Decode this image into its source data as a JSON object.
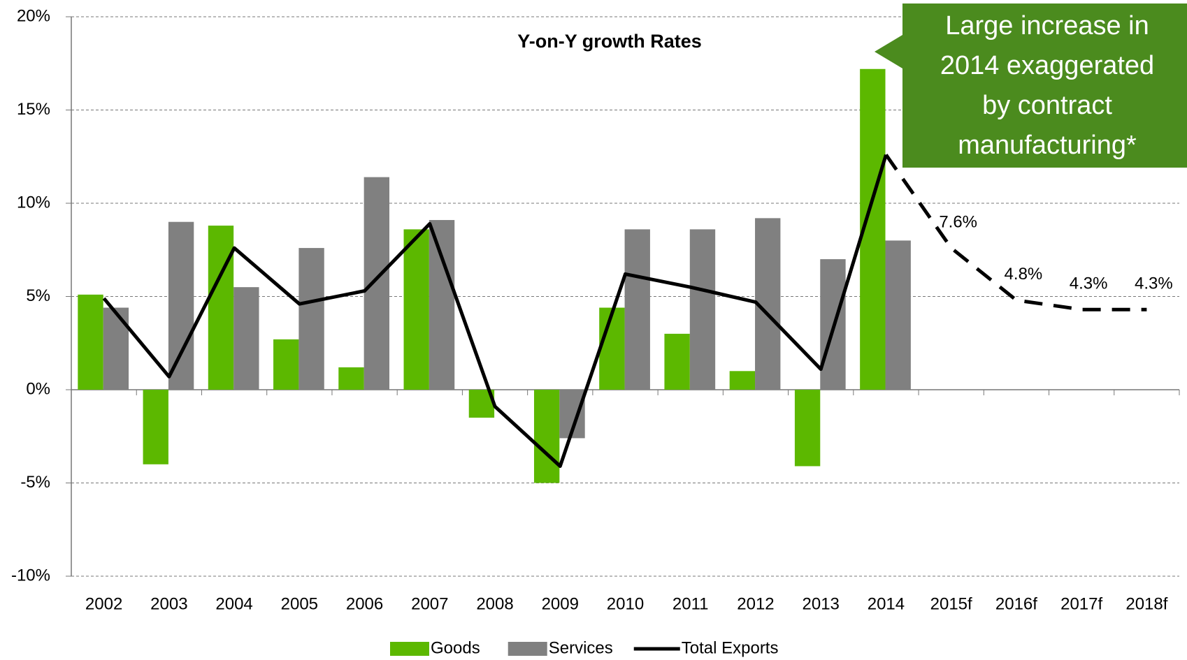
{
  "chart_data": {
    "type": "bar-line",
    "title": "Y-on-Y growth Rates",
    "categories": [
      "2002",
      "2003",
      "2004",
      "2005",
      "2006",
      "2007",
      "2008",
      "2009",
      "2010",
      "2011",
      "2012",
      "2013",
      "2014",
      "2015f",
      "2016f",
      "2017f",
      "2018f"
    ],
    "series": [
      {
        "name": "Goods",
        "type": "bar",
        "color": "#5cb800",
        "values": [
          5.1,
          -4.0,
          8.8,
          2.7,
          1.2,
          8.6,
          -1.5,
          -5.0,
          4.4,
          3.0,
          1.0,
          -4.1,
          17.2,
          null,
          null,
          null,
          null
        ]
      },
      {
        "name": "Services",
        "type": "bar",
        "color": "#808080",
        "values": [
          4.4,
          9.0,
          5.5,
          7.6,
          11.4,
          9.1,
          null,
          -2.6,
          8.6,
          8.6,
          9.2,
          7.0,
          8.0,
          null,
          null,
          null,
          null
        ]
      },
      {
        "name": "Total Exports",
        "type": "line",
        "color": "#000000",
        "values": [
          4.9,
          0.7,
          7.6,
          4.6,
          5.3,
          8.9,
          -0.9,
          -4.1,
          6.2,
          5.5,
          4.7,
          1.1,
          12.6,
          7.6,
          4.8,
          4.3,
          4.3
        ],
        "value_labels": [
          null,
          null,
          null,
          null,
          null,
          null,
          null,
          null,
          null,
          null,
          null,
          null,
          null,
          "7.6%",
          "4.8%",
          "4.3%",
          "4.3%"
        ]
      }
    ],
    "ylim": [
      -10,
      20
    ],
    "yticks": [
      {
        "value": -10,
        "label": "-10%"
      },
      {
        "value": -5,
        "label": "-5%"
      },
      {
        "value": 0,
        "label": "0%"
      },
      {
        "value": 5,
        "label": "5%"
      },
      {
        "value": 10,
        "label": "10%"
      },
      {
        "value": 15,
        "label": "15%"
      },
      {
        "value": 20,
        "label": "20%"
      }
    ],
    "grid": true,
    "annotation": [
      "Large increase in",
      "2014 exaggerated",
      "by contract",
      "manufacturing*"
    ]
  }
}
